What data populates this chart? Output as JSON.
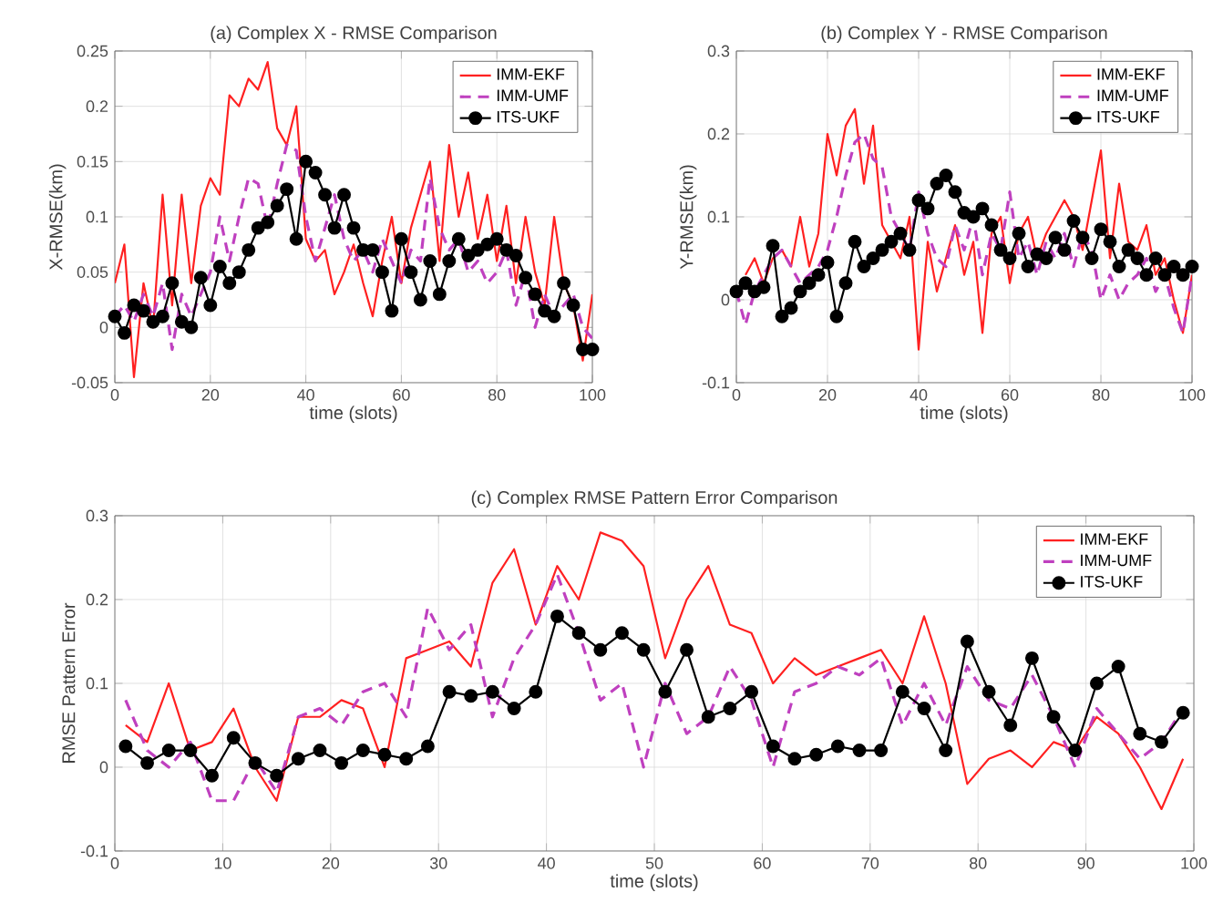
{
  "chart_data": [
    {
      "type": "line",
      "title": "(a) Complex X - RMSE Comparison",
      "xlabel": "time (slots)",
      "ylabel": "X-RMSE(km)",
      "xlim": [
        0,
        100
      ],
      "xticks": [
        0,
        20,
        40,
        60,
        80,
        100
      ],
      "ylim": [
        -0.05,
        0.25
      ],
      "yticks": [
        -0.05,
        0,
        0.05,
        0.1,
        0.15,
        0.2,
        0.25
      ],
      "grid": true,
      "legend": "top right",
      "x": [
        0,
        2,
        4,
        6,
        8,
        10,
        12,
        14,
        16,
        18,
        20,
        22,
        24,
        26,
        28,
        30,
        32,
        34,
        36,
        38,
        40,
        42,
        44,
        46,
        48,
        50,
        52,
        54,
        56,
        58,
        60,
        62,
        64,
        66,
        68,
        70,
        72,
        74,
        76,
        78,
        80,
        82,
        84,
        86,
        88,
        90,
        92,
        94,
        96,
        98,
        100
      ],
      "series": [
        {
          "name": "IMM-EKF",
          "color": "#ff2020",
          "line_style": "solid",
          "marker": "none",
          "values": [
            0.04,
            0.075,
            -0.045,
            0.04,
            0.0,
            0.12,
            0.02,
            0.12,
            0.04,
            0.11,
            0.135,
            0.12,
            0.21,
            0.2,
            0.225,
            0.215,
            0.24,
            0.18,
            0.165,
            0.2,
            0.08,
            0.06,
            0.07,
            0.03,
            0.05,
            0.075,
            0.04,
            0.01,
            0.06,
            0.1,
            0.04,
            0.09,
            0.12,
            0.15,
            0.06,
            0.165,
            0.1,
            0.14,
            0.08,
            0.12,
            0.06,
            0.11,
            0.04,
            0.1,
            0.05,
            0.02,
            0.1,
            0.04,
            0.02,
            -0.03,
            0.03
          ]
        },
        {
          "name": "IMM-UMF",
          "color": "#bf40bf",
          "line_style": "dashed",
          "marker": "none",
          "values": [
            0.01,
            0.02,
            0.005,
            0.03,
            0.01,
            0.04,
            -0.02,
            0.03,
            0.01,
            0.03,
            0.05,
            0.1,
            0.06,
            0.1,
            0.135,
            0.13,
            0.09,
            0.13,
            0.165,
            0.16,
            0.1,
            0.06,
            0.09,
            0.12,
            0.08,
            0.06,
            0.07,
            0.05,
            0.08,
            0.06,
            0.04,
            0.07,
            0.06,
            0.135,
            0.09,
            0.07,
            0.08,
            0.05,
            0.06,
            0.04,
            0.05,
            0.07,
            0.02,
            0.05,
            0.0,
            0.03,
            0.01,
            0.02,
            0.03,
            0.0,
            -0.01
          ]
        },
        {
          "name": "ITS-UKF",
          "color": "#000000",
          "line_style": "solid",
          "marker": "circle",
          "values": [
            0.01,
            -0.005,
            0.02,
            0.015,
            0.005,
            0.01,
            0.04,
            0.005,
            0.0,
            0.045,
            0.02,
            0.055,
            0.04,
            0.05,
            0.07,
            0.09,
            0.095,
            0.11,
            0.125,
            0.08,
            0.15,
            0.14,
            0.12,
            0.09,
            0.12,
            0.09,
            0.07,
            0.07,
            0.05,
            0.015,
            0.08,
            0.05,
            0.025,
            0.06,
            0.03,
            0.06,
            0.08,
            0.065,
            0.07,
            0.075,
            0.08,
            0.07,
            0.065,
            0.045,
            0.03,
            0.015,
            0.01,
            0.04,
            0.02,
            -0.02,
            -0.02
          ]
        }
      ]
    },
    {
      "type": "line",
      "title": "(b) Complex Y - RMSE Comparison",
      "xlabel": "time (slots)",
      "ylabel": "Y-RMSE(km)",
      "xlim": [
        0,
        100
      ],
      "xticks": [
        0,
        20,
        40,
        60,
        80,
        100
      ],
      "ylim": [
        -0.1,
        0.3
      ],
      "yticks": [
        -0.1,
        0,
        0.1,
        0.2,
        0.3
      ],
      "grid": true,
      "legend": "top right",
      "x": [
        0,
        2,
        4,
        6,
        8,
        10,
        12,
        14,
        16,
        18,
        20,
        22,
        24,
        26,
        28,
        30,
        32,
        34,
        36,
        38,
        40,
        42,
        44,
        46,
        48,
        50,
        52,
        54,
        56,
        58,
        60,
        62,
        64,
        66,
        68,
        70,
        72,
        74,
        76,
        78,
        80,
        82,
        84,
        86,
        88,
        90,
        92,
        94,
        96,
        98,
        100
      ],
      "series": [
        {
          "name": "IMM-EKF",
          "color": "#ff2020",
          "line_style": "solid",
          "marker": "none",
          "values": [
            null,
            0.03,
            0.05,
            0.02,
            0.05,
            0.06,
            0.04,
            0.1,
            0.04,
            0.08,
            0.2,
            0.15,
            0.21,
            0.23,
            0.14,
            0.21,
            0.09,
            0.07,
            0.05,
            0.1,
            -0.06,
            0.07,
            0.01,
            0.05,
            0.09,
            0.03,
            0.07,
            -0.04,
            0.08,
            0.1,
            0.02,
            0.08,
            0.1,
            0.05,
            0.08,
            0.1,
            0.12,
            0.1,
            0.06,
            0.12,
            0.18,
            0.05,
            0.14,
            0.07,
            0.06,
            0.09,
            0.03,
            0.05,
            0.0,
            -0.04,
            0.03
          ]
        },
        {
          "name": "IMM-UMF",
          "color": "#bf40bf",
          "line_style": "dashed",
          "marker": "none",
          "values": [
            0.01,
            -0.03,
            0.01,
            0.03,
            0.05,
            0.06,
            0.04,
            0.02,
            0.03,
            0.04,
            0.06,
            0.1,
            0.15,
            0.19,
            0.2,
            0.17,
            0.16,
            0.1,
            0.08,
            0.06,
            0.13,
            0.08,
            0.05,
            0.04,
            0.09,
            0.06,
            0.1,
            0.03,
            0.08,
            0.06,
            0.13,
            0.05,
            0.07,
            0.03,
            0.07,
            0.05,
            0.08,
            0.04,
            0.08,
            0.06,
            0.0,
            0.03,
            0.0,
            0.02,
            0.03,
            0.05,
            0.01,
            0.03,
            -0.01,
            -0.04,
            0.03
          ]
        },
        {
          "name": "ITS-UKF",
          "color": "#000000",
          "line_style": "solid",
          "marker": "circle",
          "values": [
            0.01,
            0.02,
            0.01,
            0.015,
            0.065,
            -0.02,
            -0.01,
            0.01,
            0.02,
            0.03,
            0.045,
            -0.02,
            0.02,
            0.07,
            0.04,
            0.05,
            0.06,
            0.07,
            0.08,
            0.06,
            0.12,
            0.11,
            0.14,
            0.15,
            0.13,
            0.105,
            0.1,
            0.11,
            0.09,
            0.06,
            0.05,
            0.08,
            0.04,
            0.055,
            0.05,
            0.075,
            0.06,
            0.095,
            0.075,
            0.05,
            0.085,
            0.07,
            0.04,
            0.06,
            0.05,
            0.03,
            0.05,
            0.03,
            0.04,
            0.03,
            0.04
          ]
        }
      ]
    },
    {
      "type": "line",
      "title": "(c) Complex RMSE Pattern Error Comparison",
      "xlabel": "time (slots)",
      "ylabel": "RMSE Pattern Error",
      "xlim": [
        0,
        100
      ],
      "xticks": [
        0,
        10,
        20,
        30,
        40,
        50,
        60,
        70,
        80,
        90,
        100
      ],
      "ylim": [
        -0.1,
        0.3
      ],
      "yticks": [
        -0.1,
        0,
        0.1,
        0.2,
        0.3
      ],
      "grid": true,
      "legend": "top right",
      "x": [
        1,
        3,
        5,
        7,
        9,
        11,
        13,
        15,
        17,
        19,
        21,
        23,
        25,
        27,
        29,
        31,
        33,
        35,
        37,
        39,
        41,
        43,
        45,
        47,
        49,
        51,
        53,
        55,
        57,
        59,
        61,
        63,
        65,
        67,
        69,
        71,
        73,
        75,
        77,
        79,
        81,
        83,
        85,
        87,
        89,
        91,
        93,
        95,
        97,
        99
      ],
      "series": [
        {
          "name": "IMM-EKF",
          "color": "#ff2020",
          "line_style": "solid",
          "marker": "none",
          "values": [
            0.05,
            0.03,
            0.1,
            0.02,
            0.03,
            0.07,
            0.0,
            -0.04,
            0.06,
            0.06,
            0.08,
            0.07,
            0.0,
            0.13,
            0.14,
            0.15,
            0.12,
            0.22,
            0.26,
            0.17,
            0.24,
            0.2,
            0.28,
            0.27,
            0.24,
            0.13,
            0.2,
            0.24,
            0.17,
            0.16,
            0.1,
            0.13,
            0.11,
            0.12,
            0.13,
            0.14,
            0.1,
            0.18,
            0.1,
            -0.02,
            0.01,
            0.02,
            0.0,
            0.03,
            0.02,
            0.06,
            0.04,
            0.0,
            -0.05,
            0.01
          ]
        },
        {
          "name": "IMM-UMF",
          "color": "#bf40bf",
          "line_style": "dashed",
          "marker": "none",
          "values": [
            0.08,
            0.02,
            0.0,
            0.03,
            -0.04,
            -0.04,
            0.01,
            -0.03,
            0.06,
            0.07,
            0.05,
            0.09,
            0.1,
            0.06,
            0.19,
            0.14,
            0.17,
            0.06,
            0.13,
            0.17,
            0.23,
            0.16,
            0.08,
            0.1,
            0.0,
            0.1,
            0.04,
            0.06,
            0.12,
            0.08,
            0.0,
            0.09,
            0.1,
            0.12,
            0.11,
            0.13,
            0.05,
            0.1,
            0.05,
            0.12,
            0.08,
            0.07,
            0.11,
            0.06,
            0.0,
            0.07,
            0.04,
            0.01,
            0.03,
            0.07
          ]
        },
        {
          "name": "ITS-UKF",
          "color": "#000000",
          "line_style": "solid",
          "marker": "circle",
          "values": [
            0.025,
            0.005,
            0.02,
            0.02,
            -0.01,
            0.035,
            0.005,
            -0.01,
            0.01,
            0.02,
            0.005,
            0.02,
            0.015,
            0.01,
            0.025,
            0.09,
            0.085,
            0.09,
            0.07,
            0.09,
            0.18,
            0.16,
            0.14,
            0.16,
            0.14,
            0.09,
            0.14,
            0.06,
            0.07,
            0.09,
            0.025,
            0.01,
            0.015,
            0.025,
            0.02,
            0.02,
            0.09,
            0.07,
            0.02,
            0.15,
            0.09,
            0.05,
            0.13,
            0.06,
            0.02,
            0.1,
            0.12,
            0.04,
            0.03,
            0.065
          ]
        }
      ]
    }
  ]
}
